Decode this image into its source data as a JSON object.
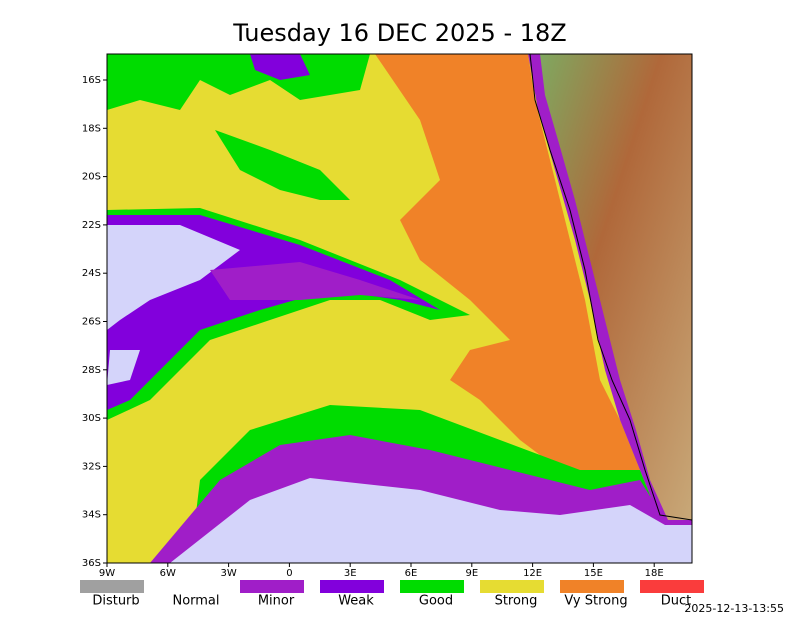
{
  "header": {
    "title": "Tuesday 16 DEC 2025 - 18Z"
  },
  "map": {
    "lat_labels": [
      "16S",
      "18S",
      "20S",
      "22S",
      "24S",
      "26S",
      "28S",
      "30S",
      "32S",
      "34S",
      "36S"
    ],
    "lon_labels": [
      "9W",
      "6W",
      "3W",
      "0",
      "3E",
      "6E",
      "9E",
      "12E",
      "15E",
      "18E"
    ]
  },
  "legend": [
    {
      "label": "Disturb",
      "color": "#a0a0a0"
    },
    {
      "label": "Normal",
      "color": "#ffffff"
    },
    {
      "label": "Minor",
      "color": "#a01ec8"
    },
    {
      "label": "Weak",
      "color": "#8200dc"
    },
    {
      "label": "Good",
      "color": "#00dc00"
    },
    {
      "label": "Strong",
      "color": "#e6dc32"
    },
    {
      "label": "Vy Strong",
      "color": "#f08228"
    },
    {
      "label": "Duct",
      "color": "#fa3c3c"
    }
  ],
  "timestamp": "2025-12-13-13:55"
}
